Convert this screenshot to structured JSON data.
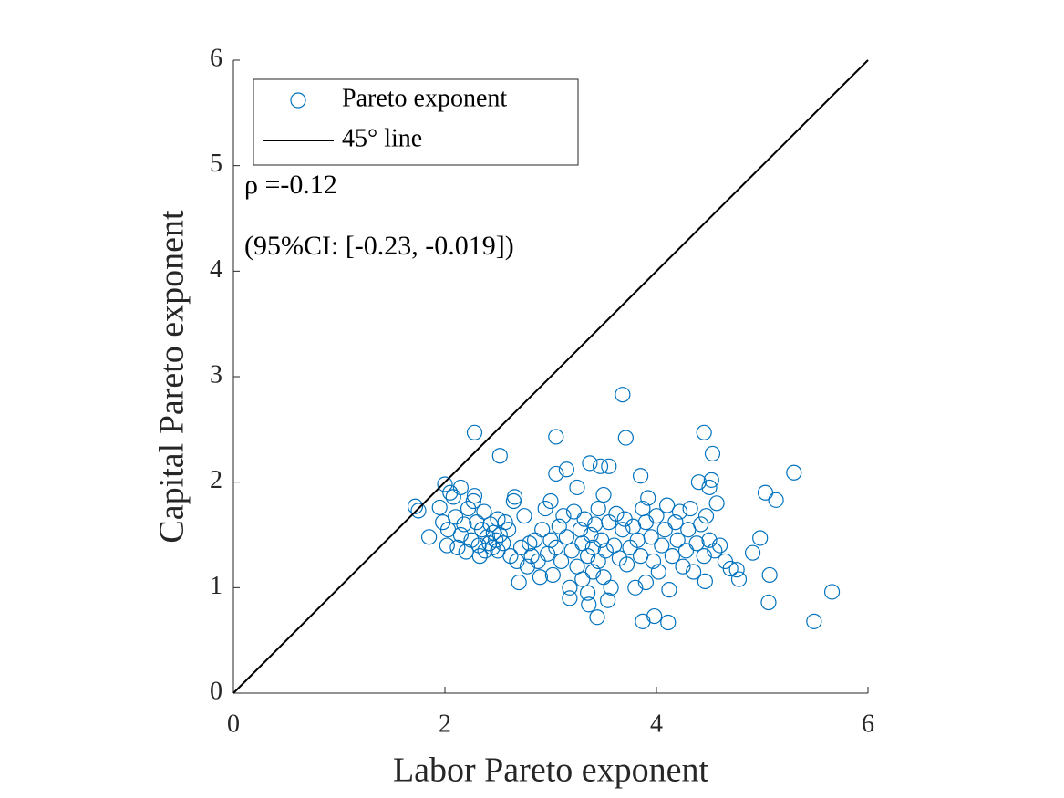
{
  "chart_data": {
    "type": "scatter",
    "x_label": "Labor Pareto exponent",
    "y_label": "Capital Pareto exponent",
    "xlim": [
      0,
      6
    ],
    "ylim": [
      0,
      6
    ],
    "xticks": [
      0,
      2,
      4,
      6
    ],
    "yticks": [
      0,
      1,
      2,
      3,
      4,
      5,
      6
    ],
    "legend": "northwest",
    "annotations": [
      "ρ =-0.12",
      "(95%CI: [-0.23, -0.019])"
    ],
    "series": [
      {
        "name": "Pareto exponent",
        "color": "#0072BD",
        "marker": "circle",
        "x": [
          1.72,
          1.75,
          1.85,
          1.95,
          1.98,
          2.0,
          2.02,
          2.03,
          2.05,
          2.08,
          2.1,
          2.12,
          2.15,
          2.15,
          2.18,
          2.2,
          2.22,
          2.25,
          2.27,
          2.28,
          2.3,
          2.32,
          2.33,
          2.35,
          2.37,
          2.38,
          2.4,
          2.42,
          2.43,
          2.45,
          2.46,
          2.48,
          2.5,
          2.5,
          2.52,
          2.55,
          2.57,
          2.6,
          2.62,
          2.65,
          2.66,
          2.68,
          2.7,
          2.72,
          2.75,
          2.78,
          2.8,
          2.82,
          2.85,
          2.88,
          2.9,
          2.92,
          2.95,
          2.97,
          3.0,
          3.0,
          3.02,
          3.05,
          3.05,
          3.08,
          3.1,
          3.12,
          3.15,
          3.15,
          3.18,
          3.18,
          3.2,
          3.22,
          3.25,
          3.25,
          3.28,
          3.3,
          3.3,
          3.32,
          3.35,
          3.35,
          3.37,
          3.38,
          3.4,
          3.4,
          3.42,
          3.45,
          3.45,
          3.47,
          3.48,
          3.5,
          3.5,
          3.52,
          3.55,
          3.55,
          3.57,
          3.6,
          3.62,
          3.65,
          3.68,
          3.7,
          3.72,
          3.75,
          3.78,
          3.8,
          3.82,
          3.85,
          3.85,
          3.87,
          3.9,
          3.9,
          3.92,
          3.95,
          3.97,
          4.0,
          4.02,
          4.05,
          4.08,
          4.1,
          4.12,
          4.15,
          4.18,
          4.2,
          4.22,
          4.25,
          4.28,
          4.3,
          4.32,
          4.35,
          4.38,
          4.4,
          4.42,
          4.45,
          4.47,
          4.5,
          4.5,
          4.52,
          4.55,
          4.57,
          4.6,
          4.65,
          4.7,
          2.28,
          2.52,
          3.05,
          3.68,
          3.71,
          4.45,
          4.53,
          5.3,
          5.03,
          5.13,
          5.49,
          5.66,
          5.06,
          5.07,
          4.91,
          4.98,
          3.87,
          4.11,
          3.98,
          3.44,
          3.54,
          3.36,
          4.78,
          4.76,
          4.46
        ],
        "values": [
          1.77,
          1.73,
          1.48,
          1.76,
          1.62,
          1.98,
          1.4,
          1.55,
          1.9,
          1.86,
          1.67,
          1.38,
          1.95,
          1.5,
          1.6,
          1.34,
          1.75,
          1.45,
          1.82,
          1.87,
          1.62,
          1.4,
          1.3,
          1.55,
          1.72,
          1.35,
          1.48,
          1.42,
          1.6,
          1.38,
          1.52,
          1.45,
          1.35,
          1.65,
          1.5,
          1.42,
          1.62,
          1.55,
          1.3,
          1.82,
          1.86,
          1.25,
          1.05,
          1.38,
          1.68,
          1.2,
          1.42,
          1.3,
          1.45,
          1.25,
          1.1,
          1.55,
          1.75,
          1.32,
          1.82,
          1.45,
          1.12,
          2.08,
          1.38,
          1.58,
          1.25,
          1.68,
          1.48,
          2.12,
          0.9,
          1.0,
          1.35,
          1.72,
          1.95,
          1.2,
          1.55,
          1.42,
          1.08,
          1.65,
          0.95,
          1.3,
          2.18,
          1.5,
          1.15,
          1.38,
          1.6,
          1.25,
          1.75,
          2.15,
          1.45,
          1.88,
          1.1,
          1.35,
          1.62,
          2.15,
          1.0,
          1.4,
          1.7,
          1.28,
          1.55,
          1.65,
          1.22,
          1.38,
          1.58,
          1.0,
          1.45,
          2.06,
          1.3,
          1.75,
          1.62,
          1.05,
          1.85,
          1.48,
          1.25,
          1.68,
          1.15,
          1.4,
          1.55,
          1.78,
          0.98,
          1.3,
          1.62,
          1.45,
          1.72,
          1.2,
          1.35,
          1.55,
          1.75,
          1.15,
          1.42,
          2.0,
          1.6,
          1.3,
          1.68,
          1.95,
          1.45,
          2.02,
          1.35,
          1.8,
          1.4,
          1.25,
          1.18,
          2.47,
          2.25,
          2.43,
          2.83,
          2.42,
          2.47,
          2.27,
          2.09,
          1.9,
          1.83,
          0.68,
          0.96,
          0.86,
          1.12,
          1.33,
          1.47,
          0.68,
          0.67,
          0.73,
          0.72,
          0.88,
          0.84,
          1.08,
          1.17,
          1.06
        ]
      },
      {
        "name": "45° line",
        "color": "#000000",
        "marker": "line",
        "x": [
          0,
          6
        ],
        "values": [
          0,
          6
        ]
      }
    ]
  }
}
